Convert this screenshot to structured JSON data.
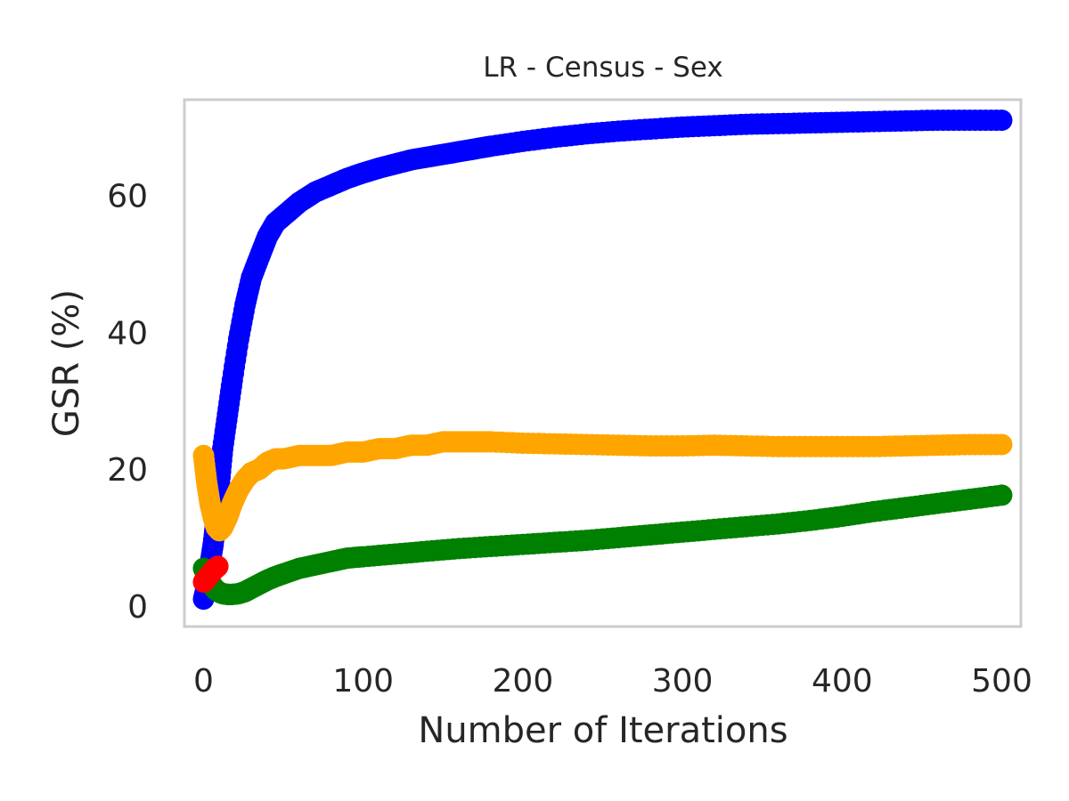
{
  "chart_data": {
    "type": "scatter",
    "title": "LR - Census - Sex",
    "xlabel": "Number of Iterations",
    "ylabel": "GSR (%)",
    "xlim": [
      -12,
      512
    ],
    "ylim": [
      -3,
      74
    ],
    "xticks": [
      0,
      100,
      200,
      300,
      400,
      500
    ],
    "yticks": [
      0,
      20,
      40,
      60
    ],
    "grid": false,
    "series": [
      {
        "color": "#0000ff",
        "x": [
          0,
          2,
          4,
          6,
          8,
          10,
          12,
          15,
          18,
          22,
          26,
          30,
          35,
          40,
          45,
          50,
          55,
          60,
          70,
          80,
          90,
          100,
          110,
          120,
          130,
          140,
          150,
          160,
          170,
          180,
          200,
          220,
          240,
          260,
          280,
          300,
          320,
          340,
          360,
          380,
          400,
          420,
          440,
          460,
          480,
          500
        ],
        "y": [
          1,
          3,
          6,
          9,
          13,
          18,
          23,
          28,
          33,
          39,
          44,
          48,
          51,
          54,
          56,
          57,
          58,
          59,
          60.5,
          61.5,
          62.5,
          63.3,
          64,
          64.6,
          65.2,
          65.6,
          66,
          66.4,
          66.8,
          67.2,
          67.9,
          68.5,
          69,
          69.4,
          69.7,
          70,
          70.2,
          70.4,
          70.5,
          70.6,
          70.7,
          70.8,
          70.9,
          71,
          71,
          71
        ]
      },
      {
        "color": "#ffa500",
        "x": [
          0,
          2,
          4,
          6,
          8,
          10,
          12,
          15,
          18,
          22,
          26,
          30,
          35,
          40,
          45,
          50,
          60,
          70,
          80,
          90,
          100,
          110,
          120,
          130,
          140,
          150,
          160,
          170,
          180,
          200,
          220,
          240,
          260,
          280,
          300,
          320,
          340,
          360,
          380,
          400,
          420,
          440,
          460,
          480,
          500
        ],
        "y": [
          22,
          18,
          15,
          13,
          11.5,
          11,
          11.5,
          13,
          15,
          17,
          18.5,
          19.5,
          20,
          21,
          21.5,
          21.5,
          22,
          22,
          22,
          22.5,
          22.5,
          23,
          23,
          23.5,
          23.5,
          24,
          24,
          24,
          24,
          23.8,
          23.7,
          23.6,
          23.5,
          23.4,
          23.4,
          23.5,
          23.4,
          23.3,
          23.3,
          23.3,
          23.3,
          23.4,
          23.5,
          23.6,
          23.6
        ]
      },
      {
        "color": "#008000",
        "x": [
          0,
          2,
          4,
          6,
          8,
          10,
          12,
          15,
          18,
          22,
          26,
          30,
          35,
          40,
          45,
          50,
          60,
          70,
          80,
          90,
          100,
          120,
          140,
          160,
          180,
          200,
          220,
          240,
          260,
          280,
          300,
          320,
          340,
          360,
          380,
          400,
          420,
          440,
          460,
          480,
          500
        ],
        "y": [
          5.5,
          4.5,
          3.5,
          2.8,
          2.3,
          2,
          1.8,
          1.7,
          1.7,
          1.8,
          2.1,
          2.6,
          3.2,
          3.8,
          4.3,
          4.7,
          5.5,
          6,
          6.5,
          7,
          7.2,
          7.6,
          8,
          8.4,
          8.7,
          9,
          9.3,
          9.6,
          10,
          10.4,
          10.8,
          11.2,
          11.6,
          12,
          12.5,
          13.1,
          13.8,
          14.4,
          15,
          15.6,
          16.2
        ]
      },
      {
        "color": "#ff0000",
        "x": [
          0,
          1,
          2,
          3,
          4,
          5,
          6,
          7,
          8,
          9
        ],
        "y": [
          3.5,
          3.8,
          4,
          4.3,
          4.6,
          4.9,
          5.2,
          5.4,
          5.6,
          5.8
        ]
      }
    ]
  }
}
